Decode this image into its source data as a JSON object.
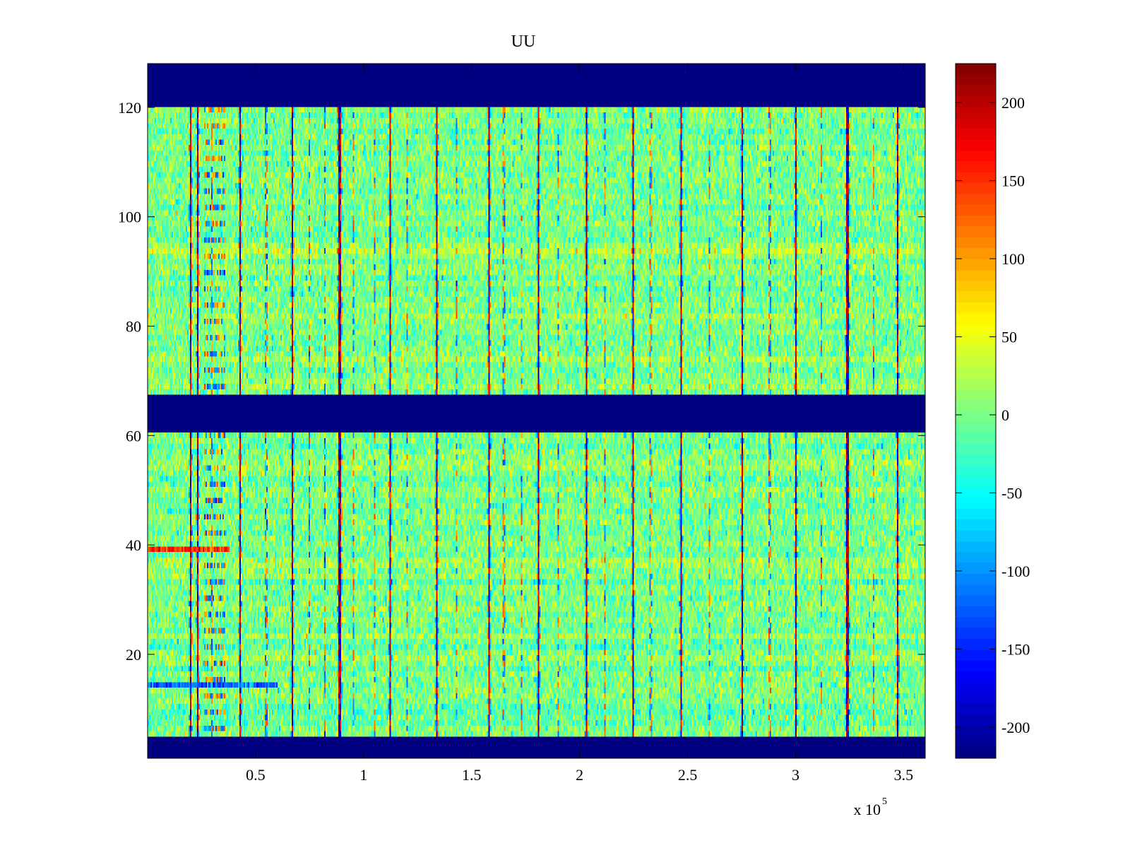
{
  "chart_data": {
    "type": "heatmap",
    "title": "UU",
    "xlabel": "",
    "ylabel": "",
    "x_exponent_label": "x 10",
    "x_exponent": "5",
    "xlim": [
      0,
      3.6
    ],
    "ylim": [
      1,
      128
    ],
    "x_ticks": [
      0.5,
      1,
      1.5,
      2,
      2.5,
      3,
      3.5
    ],
    "x_tick_labels": [
      "0.5",
      "1",
      "1.5",
      "2",
      "2.5",
      "3",
      "3.5"
    ],
    "y_ticks": [
      20,
      40,
      60,
      80,
      100,
      120
    ],
    "y_tick_labels": [
      "20",
      "40",
      "60",
      "80",
      "100",
      "120"
    ],
    "colormap": "jet",
    "clim": [
      -220,
      225
    ],
    "colorbar_ticks": [
      200,
      150,
      100,
      50,
      0,
      -50,
      -100,
      -150,
      -200
    ],
    "colorbar_tick_labels": [
      "200",
      "150",
      "100",
      "50",
      "0",
      "-50",
      "-100",
      "-150",
      "-200"
    ],
    "masked_row_bands": [
      {
        "from": 1,
        "to": 4,
        "value": -220
      },
      {
        "from": 61,
        "to": 67,
        "value": -220
      },
      {
        "from": 121,
        "to": 128,
        "value": -220
      }
    ],
    "strong_columns_x": [
      0.2,
      0.23,
      0.43,
      0.67,
      0.89,
      1.12,
      1.34,
      1.58,
      1.81,
      2.03,
      2.25,
      2.47,
      2.75,
      3.0,
      3.24,
      3.47
    ],
    "weak_columns_x": [
      0.3,
      0.55,
      0.75,
      0.82,
      0.95,
      1.05,
      1.2,
      1.43,
      1.65,
      1.73,
      1.9,
      2.12,
      2.33,
      2.6,
      2.88,
      3.12,
      3.36
    ],
    "highlight_rows": [
      {
        "row": 39,
        "x_from": 0,
        "x_to": 0.38,
        "value": 150
      },
      {
        "row": 14,
        "x_from": 0,
        "x_to": 0.6,
        "value": -120
      }
    ],
    "noise_std": 25
  }
}
